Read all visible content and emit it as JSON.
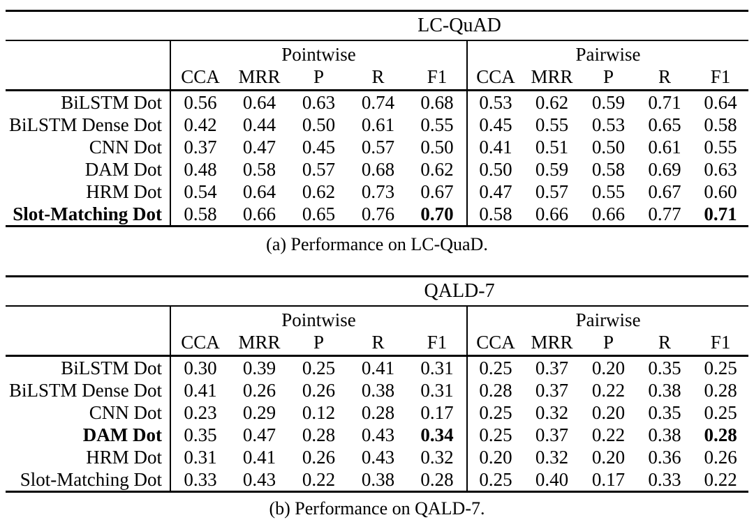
{
  "colors": {
    "background": "#ffffff",
    "text": "#000000",
    "rules": "#000000"
  },
  "tables": [
    {
      "title": "LC-QuAD",
      "group_headers": [
        "Pointwise",
        "Pairwise"
      ],
      "metric_headers": [
        "CCA",
        "MRR",
        "P",
        "R",
        "F1"
      ],
      "rows": [
        {
          "label": "BiLSTM Dot",
          "label_bold": false,
          "f1_bold": false,
          "pointwise": [
            "0.56",
            "0.64",
            "0.63",
            "0.74",
            "0.68"
          ],
          "pairwise": [
            "0.53",
            "0.62",
            "0.59",
            "0.71",
            "0.64"
          ]
        },
        {
          "label": "BiLSTM Dense Dot",
          "label_bold": false,
          "f1_bold": false,
          "pointwise": [
            "0.42",
            "0.44",
            "0.50",
            "0.61",
            "0.55"
          ],
          "pairwise": [
            "0.45",
            "0.55",
            "0.53",
            "0.65",
            "0.58"
          ]
        },
        {
          "label": "CNN Dot",
          "label_bold": false,
          "f1_bold": false,
          "pointwise": [
            "0.37",
            "0.47",
            "0.45",
            "0.57",
            "0.50"
          ],
          "pairwise": [
            "0.41",
            "0.51",
            "0.50",
            "0.61",
            "0.55"
          ]
        },
        {
          "label": "DAM Dot",
          "label_bold": false,
          "f1_bold": false,
          "pointwise": [
            "0.48",
            "0.58",
            "0.57",
            "0.68",
            "0.62"
          ],
          "pairwise": [
            "0.50",
            "0.59",
            "0.58",
            "0.69",
            "0.63"
          ]
        },
        {
          "label": "HRM Dot",
          "label_bold": false,
          "f1_bold": false,
          "pointwise": [
            "0.54",
            "0.64",
            "0.62",
            "0.73",
            "0.67"
          ],
          "pairwise": [
            "0.47",
            "0.57",
            "0.55",
            "0.67",
            "0.60"
          ]
        },
        {
          "label": "Slot-Matching Dot",
          "label_bold": true,
          "f1_bold": true,
          "pointwise": [
            "0.58",
            "0.66",
            "0.65",
            "0.76",
            "0.70"
          ],
          "pairwise": [
            "0.58",
            "0.66",
            "0.66",
            "0.77",
            "0.71"
          ]
        }
      ],
      "caption": "(a) Performance on LC-QuaD."
    },
    {
      "title": "QALD-7",
      "group_headers": [
        "Pointwise",
        "Pairwise"
      ],
      "metric_headers": [
        "CCA",
        "MRR",
        "P",
        "R",
        "F1"
      ],
      "rows": [
        {
          "label": "BiLSTM Dot",
          "label_bold": false,
          "f1_bold": false,
          "pointwise": [
            "0.30",
            "0.39",
            "0.25",
            "0.41",
            "0.31"
          ],
          "pairwise": [
            "0.25",
            "0.37",
            "0.20",
            "0.35",
            "0.25"
          ]
        },
        {
          "label": "BiLSTM Dense Dot",
          "label_bold": false,
          "f1_bold": false,
          "pointwise": [
            "0.41",
            "0.26",
            "0.26",
            "0.38",
            "0.31"
          ],
          "pairwise": [
            "0.28",
            "0.37",
            "0.22",
            "0.38",
            "0.28"
          ]
        },
        {
          "label": "CNN Dot",
          "label_bold": false,
          "f1_bold": false,
          "pointwise": [
            "0.23",
            "0.29",
            "0.12",
            "0.28",
            "0.17"
          ],
          "pairwise": [
            "0.25",
            "0.32",
            "0.20",
            "0.35",
            "0.25"
          ]
        },
        {
          "label": "DAM Dot",
          "label_bold": true,
          "f1_bold": true,
          "pointwise": [
            "0.35",
            "0.47",
            "0.28",
            "0.43",
            "0.34"
          ],
          "pairwise": [
            "0.25",
            "0.37",
            "0.22",
            "0.38",
            "0.28"
          ]
        },
        {
          "label": "HRM Dot",
          "label_bold": false,
          "f1_bold": false,
          "pointwise": [
            "0.31",
            "0.41",
            "0.26",
            "0.43",
            "0.32"
          ],
          "pairwise": [
            "0.20",
            "0.32",
            "0.20",
            "0.36",
            "0.26"
          ]
        },
        {
          "label": "Slot-Matching Dot",
          "label_bold": false,
          "f1_bold": false,
          "pointwise": [
            "0.33",
            "0.43",
            "0.22",
            "0.38",
            "0.28"
          ],
          "pairwise": [
            "0.25",
            "0.40",
            "0.17",
            "0.33",
            "0.22"
          ]
        }
      ],
      "caption": "(b) Performance on QALD-7."
    }
  ]
}
